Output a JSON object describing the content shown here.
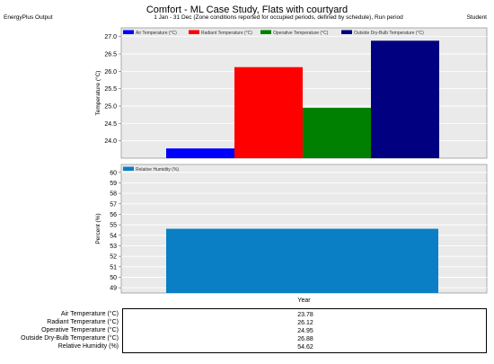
{
  "header": {
    "title": "Comfort - ML Case Study, Flats with courtyard",
    "left": "EnergyPlus Output",
    "center": "1 Jan - 31 Dec (Zone conditions reported for occupied periods, defined by schedule), Run period",
    "right": "Student"
  },
  "chart_data": [
    {
      "type": "bar",
      "ylabel": "Temperature (°C)",
      "ylim": [
        23.5,
        27.25
      ],
      "yticks": [
        "24.0",
        "24.5",
        "25.0",
        "25.5",
        "26.0",
        "26.5",
        "27.0"
      ],
      "grid": true,
      "legend_position": "top",
      "series": [
        {
          "name": "Air Temperature (°C)",
          "value": 23.78,
          "color": "#0000ff"
        },
        {
          "name": "Radiant Temperature (°C)",
          "value": 26.12,
          "color": "#ff0000"
        },
        {
          "name": "Operative Temperature (°C)",
          "value": 24.95,
          "color": "#008000"
        },
        {
          "name": "Outside Dry-Bulb Temperature (°C)",
          "value": 26.88,
          "color": "#000080"
        }
      ]
    },
    {
      "type": "bar",
      "ylabel": "Percent (%)",
      "xlabel": "Year",
      "ylim": [
        48.5,
        60.75
      ],
      "yticks": [
        "49",
        "50",
        "51",
        "52",
        "53",
        "54",
        "55",
        "56",
        "57",
        "58",
        "59",
        "60"
      ],
      "grid": true,
      "legend_position": "top",
      "series": [
        {
          "name": "Relative Humidity (%)",
          "value": 54.62,
          "color": "#0a7fc6"
        }
      ]
    }
  ],
  "summary_table": [
    {
      "label": "Air Temperature (°C)",
      "value": "23.78"
    },
    {
      "label": "Radiant Temperature (°C)",
      "value": "26.12"
    },
    {
      "label": "Operative Temperature (°C)",
      "value": "24.95"
    },
    {
      "label": "Outside Dry-Bulb Temperature (°C)",
      "value": "26.88"
    },
    {
      "label": "Relative Humidity (%)",
      "value": "54.62"
    }
  ]
}
